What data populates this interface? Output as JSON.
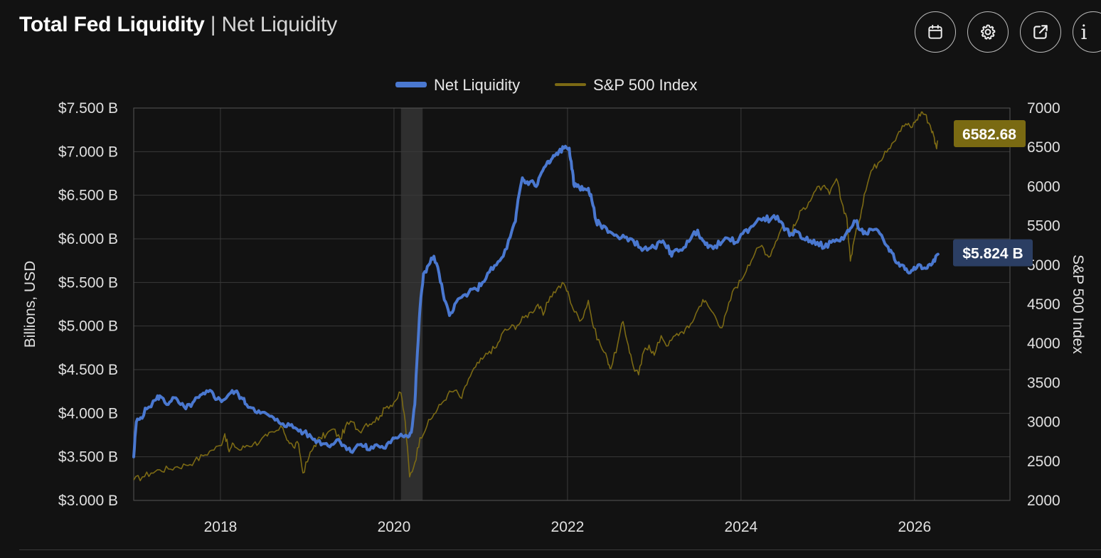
{
  "header": {
    "title": "Total Fed Liquidity",
    "separator": "|",
    "subtitle": "Net Liquidity"
  },
  "toolbar": {
    "buttons": [
      {
        "name": "calendar-button",
        "icon": "calendar-icon"
      },
      {
        "name": "settings-button",
        "icon": "gear-icon"
      },
      {
        "name": "open-external-button",
        "icon": "external-link-icon"
      },
      {
        "name": "info-button",
        "icon": "info-icon",
        "glyph": "i"
      }
    ]
  },
  "colors": {
    "background": "#121212",
    "grid": "#3a3a3a",
    "liquidity": "#4a78d0",
    "spx": "#7c6a14",
    "liquidity_label_bg": "#2b3e63",
    "spx_label_bg": "#7a6a12",
    "recession": "#3a3a3a"
  },
  "chart_data": {
    "type": "line",
    "title": "",
    "legend": {
      "placement": "top-center",
      "entries": [
        "Net Liquidity",
        "S&P 500 Index"
      ]
    },
    "x_axis": {
      "range": [
        2017.0,
        2027.1
      ],
      "ticks": [
        2018,
        2020,
        2022,
        2024,
        2026
      ],
      "tick_labels": [
        "2018",
        "2020",
        "2022",
        "2024",
        "2026"
      ]
    },
    "y_left": {
      "label": "Billions, USD",
      "range": [
        3000,
        7500
      ],
      "ticks": [
        3000,
        3500,
        4000,
        4500,
        5000,
        5500,
        6000,
        6500,
        7000,
        7500
      ],
      "tick_labels": [
        "$3.000 B",
        "$3.500 B",
        "$4.000 B",
        "$4.500 B",
        "$5.000 B",
        "$5.500 B",
        "$6.000 B",
        "$6.500 B",
        "$7.000 B",
        "$7.500 B"
      ]
    },
    "y_right": {
      "label": "S&P 500 Index",
      "range": [
        2000,
        7000
      ],
      "ticks": [
        2000,
        2500,
        3000,
        3500,
        4000,
        4500,
        5000,
        5500,
        6000,
        6500,
        7000
      ],
      "tick_labels": [
        "2000",
        "2500",
        "3000",
        "3500",
        "4000",
        "4500",
        "5000",
        "5500",
        "6000",
        "6500",
        "7000"
      ]
    },
    "shaded_periods": [
      {
        "name": "recession-2020",
        "start": 2020.08,
        "end": 2020.33
      }
    ],
    "series": [
      {
        "name": "Net Liquidity",
        "axis": "left",
        "last_value_label": "$5.824 B",
        "points": [
          [
            2017.0,
            3500
          ],
          [
            2017.03,
            3900
          ],
          [
            2017.08,
            3950
          ],
          [
            2017.15,
            4050
          ],
          [
            2017.25,
            4150
          ],
          [
            2017.3,
            4200
          ],
          [
            2017.38,
            4100
          ],
          [
            2017.45,
            4180
          ],
          [
            2017.52,
            4120
          ],
          [
            2017.6,
            4050
          ],
          [
            2017.68,
            4120
          ],
          [
            2017.75,
            4180
          ],
          [
            2017.82,
            4220
          ],
          [
            2017.9,
            4250
          ],
          [
            2017.96,
            4160
          ],
          [
            2018.03,
            4150
          ],
          [
            2018.1,
            4220
          ],
          [
            2018.17,
            4250
          ],
          [
            2018.24,
            4180
          ],
          [
            2018.3,
            4100
          ],
          [
            2018.38,
            4060
          ],
          [
            2018.46,
            4000
          ],
          [
            2018.55,
            3980
          ],
          [
            2018.63,
            3920
          ],
          [
            2018.72,
            3880
          ],
          [
            2018.8,
            3860
          ],
          [
            2018.88,
            3820
          ],
          [
            2018.96,
            3780
          ],
          [
            2019.05,
            3720
          ],
          [
            2019.12,
            3680
          ],
          [
            2019.2,
            3650
          ],
          [
            2019.28,
            3640
          ],
          [
            2019.36,
            3700
          ],
          [
            2019.44,
            3620
          ],
          [
            2019.5,
            3560
          ],
          [
            2019.58,
            3640
          ],
          [
            2019.66,
            3620
          ],
          [
            2019.72,
            3580
          ],
          [
            2019.8,
            3640
          ],
          [
            2019.88,
            3600
          ],
          [
            2019.96,
            3660
          ],
          [
            2020.02,
            3720
          ],
          [
            2020.08,
            3760
          ],
          [
            2020.15,
            3740
          ],
          [
            2020.2,
            3780
          ],
          [
            2020.24,
            4100
          ],
          [
            2020.27,
            4700
          ],
          [
            2020.3,
            5200
          ],
          [
            2020.34,
            5600
          ],
          [
            2020.4,
            5700
          ],
          [
            2020.46,
            5800
          ],
          [
            2020.52,
            5600
          ],
          [
            2020.58,
            5300
          ],
          [
            2020.64,
            5120
          ],
          [
            2020.7,
            5250
          ],
          [
            2020.78,
            5330
          ],
          [
            2020.86,
            5380
          ],
          [
            2020.95,
            5420
          ],
          [
            2021.02,
            5500
          ],
          [
            2021.1,
            5620
          ],
          [
            2021.18,
            5700
          ],
          [
            2021.26,
            5800
          ],
          [
            2021.34,
            6020
          ],
          [
            2021.4,
            6200
          ],
          [
            2021.44,
            6500
          ],
          [
            2021.48,
            6700
          ],
          [
            2021.52,
            6640
          ],
          [
            2021.58,
            6660
          ],
          [
            2021.64,
            6600
          ],
          [
            2021.7,
            6760
          ],
          [
            2021.76,
            6860
          ],
          [
            2021.8,
            6880
          ],
          [
            2021.85,
            6950
          ],
          [
            2021.9,
            7000
          ],
          [
            2021.96,
            7040
          ],
          [
            2022.02,
            7040
          ],
          [
            2022.05,
            6800
          ],
          [
            2022.08,
            6600
          ],
          [
            2022.12,
            6620
          ],
          [
            2022.18,
            6560
          ],
          [
            2022.24,
            6580
          ],
          [
            2022.28,
            6440
          ],
          [
            2022.33,
            6200
          ],
          [
            2022.38,
            6160
          ],
          [
            2022.45,
            6120
          ],
          [
            2022.52,
            6060
          ],
          [
            2022.6,
            6000
          ],
          [
            2022.68,
            6020
          ],
          [
            2022.76,
            5980
          ],
          [
            2022.84,
            5900
          ],
          [
            2022.92,
            5870
          ],
          [
            2023.0,
            5900
          ],
          [
            2023.08,
            5960
          ],
          [
            2023.16,
            5920
          ],
          [
            2023.2,
            5800
          ],
          [
            2023.26,
            5880
          ],
          [
            2023.34,
            5900
          ],
          [
            2023.42,
            6000
          ],
          [
            2023.5,
            6100
          ],
          [
            2023.56,
            5980
          ],
          [
            2023.62,
            5900
          ],
          [
            2023.7,
            5920
          ],
          [
            2023.78,
            5960
          ],
          [
            2023.86,
            6000
          ],
          [
            2023.94,
            5960
          ],
          [
            2024.02,
            6060
          ],
          [
            2024.1,
            6120
          ],
          [
            2024.18,
            6200
          ],
          [
            2024.26,
            6240
          ],
          [
            2024.34,
            6220
          ],
          [
            2024.42,
            6260
          ],
          [
            2024.5,
            6100
          ],
          [
            2024.58,
            6060
          ],
          [
            2024.66,
            6080
          ],
          [
            2024.72,
            6000
          ],
          [
            2024.8,
            5980
          ],
          [
            2024.88,
            5960
          ],
          [
            2024.96,
            5900
          ],
          [
            2025.04,
            5960
          ],
          [
            2025.12,
            5980
          ],
          [
            2025.2,
            6040
          ],
          [
            2025.26,
            6120
          ],
          [
            2025.32,
            6200
          ],
          [
            2025.38,
            6100
          ],
          [
            2025.44,
            6060
          ],
          [
            2025.52,
            6100
          ],
          [
            2025.6,
            6060
          ],
          [
            2025.68,
            5920
          ],
          [
            2025.74,
            5840
          ],
          [
            2025.8,
            5720
          ],
          [
            2025.86,
            5700
          ],
          [
            2025.92,
            5620
          ],
          [
            2025.98,
            5640
          ],
          [
            2026.04,
            5700
          ],
          [
            2026.1,
            5660
          ],
          [
            2026.16,
            5700
          ],
          [
            2026.22,
            5760
          ],
          [
            2026.27,
            5824
          ]
        ]
      },
      {
        "name": "S&P 500 Index",
        "axis": "right",
        "last_value_label": "6582.68",
        "points": [
          [
            2017.0,
            2260
          ],
          [
            2017.1,
            2300
          ],
          [
            2017.2,
            2350
          ],
          [
            2017.3,
            2390
          ],
          [
            2017.4,
            2400
          ],
          [
            2017.5,
            2430
          ],
          [
            2017.6,
            2450
          ],
          [
            2017.7,
            2500
          ],
          [
            2017.8,
            2570
          ],
          [
            2017.9,
            2640
          ],
          [
            2018.0,
            2700
          ],
          [
            2018.05,
            2850
          ],
          [
            2018.1,
            2620
          ],
          [
            2018.15,
            2720
          ],
          [
            2018.22,
            2640
          ],
          [
            2018.3,
            2700
          ],
          [
            2018.38,
            2720
          ],
          [
            2018.46,
            2760
          ],
          [
            2018.54,
            2820
          ],
          [
            2018.62,
            2870
          ],
          [
            2018.72,
            2920
          ],
          [
            2018.78,
            2760
          ],
          [
            2018.84,
            2680
          ],
          [
            2018.9,
            2720
          ],
          [
            2018.95,
            2350
          ],
          [
            2019.02,
            2550
          ],
          [
            2019.08,
            2700
          ],
          [
            2019.15,
            2800
          ],
          [
            2019.22,
            2840
          ],
          [
            2019.3,
            2910
          ],
          [
            2019.38,
            2780
          ],
          [
            2019.44,
            2940
          ],
          [
            2019.52,
            3000
          ],
          [
            2019.6,
            2880
          ],
          [
            2019.68,
            2980
          ],
          [
            2019.76,
            3000
          ],
          [
            2019.84,
            3080
          ],
          [
            2019.92,
            3200
          ],
          [
            2020.0,
            3250
          ],
          [
            2020.08,
            3370
          ],
          [
            2020.13,
            3000
          ],
          [
            2020.18,
            2300
          ],
          [
            2020.24,
            2480
          ],
          [
            2020.3,
            2800
          ],
          [
            2020.38,
            2950
          ],
          [
            2020.46,
            3100
          ],
          [
            2020.54,
            3220
          ],
          [
            2020.62,
            3350
          ],
          [
            2020.7,
            3400
          ],
          [
            2020.78,
            3300
          ],
          [
            2020.86,
            3550
          ],
          [
            2020.94,
            3700
          ],
          [
            2021.02,
            3800
          ],
          [
            2021.1,
            3900
          ],
          [
            2021.18,
            3950
          ],
          [
            2021.26,
            4150
          ],
          [
            2021.34,
            4200
          ],
          [
            2021.42,
            4230
          ],
          [
            2021.5,
            4330
          ],
          [
            2021.58,
            4400
          ],
          [
            2021.66,
            4500
          ],
          [
            2021.72,
            4360
          ],
          [
            2021.8,
            4600
          ],
          [
            2021.88,
            4700
          ],
          [
            2021.96,
            4760
          ],
          [
            2022.02,
            4600
          ],
          [
            2022.08,
            4400
          ],
          [
            2022.16,
            4300
          ],
          [
            2022.24,
            4550
          ],
          [
            2022.3,
            4200
          ],
          [
            2022.38,
            3980
          ],
          [
            2022.46,
            3800
          ],
          [
            2022.5,
            3680
          ],
          [
            2022.58,
            4000
          ],
          [
            2022.64,
            4280
          ],
          [
            2022.7,
            3980
          ],
          [
            2022.76,
            3700
          ],
          [
            2022.82,
            3600
          ],
          [
            2022.88,
            3900
          ],
          [
            2022.94,
            3980
          ],
          [
            2023.0,
            3850
          ],
          [
            2023.08,
            4100
          ],
          [
            2023.16,
            3970
          ],
          [
            2023.24,
            4100
          ],
          [
            2023.32,
            4150
          ],
          [
            2023.4,
            4200
          ],
          [
            2023.48,
            4380
          ],
          [
            2023.56,
            4560
          ],
          [
            2023.62,
            4480
          ],
          [
            2023.7,
            4350
          ],
          [
            2023.78,
            4200
          ],
          [
            2023.84,
            4420
          ],
          [
            2023.92,
            4700
          ],
          [
            2024.0,
            4800
          ],
          [
            2024.08,
            5000
          ],
          [
            2024.16,
            5150
          ],
          [
            2024.24,
            5250
          ],
          [
            2024.32,
            5100
          ],
          [
            2024.4,
            5300
          ],
          [
            2024.48,
            5500
          ],
          [
            2024.56,
            5400
          ],
          [
            2024.62,
            5500
          ],
          [
            2024.7,
            5700
          ],
          [
            2024.78,
            5800
          ],
          [
            2024.86,
            5950
          ],
          [
            2024.94,
            6000
          ],
          [
            2025.02,
            5900
          ],
          [
            2025.1,
            6100
          ],
          [
            2025.16,
            5800
          ],
          [
            2025.22,
            5600
          ],
          [
            2025.26,
            5050
          ],
          [
            2025.3,
            5300
          ],
          [
            2025.36,
            5550
          ],
          [
            2025.42,
            5900
          ],
          [
            2025.5,
            6200
          ],
          [
            2025.58,
            6300
          ],
          [
            2025.66,
            6450
          ],
          [
            2025.74,
            6550
          ],
          [
            2025.82,
            6700
          ],
          [
            2025.9,
            6800
          ],
          [
            2025.96,
            6750
          ],
          [
            2026.02,
            6850
          ],
          [
            2026.08,
            6950
          ],
          [
            2026.12,
            6920
          ],
          [
            2026.18,
            6780
          ],
          [
            2026.22,
            6650
          ],
          [
            2026.25,
            6500
          ],
          [
            2026.27,
            6583
          ]
        ]
      }
    ]
  }
}
